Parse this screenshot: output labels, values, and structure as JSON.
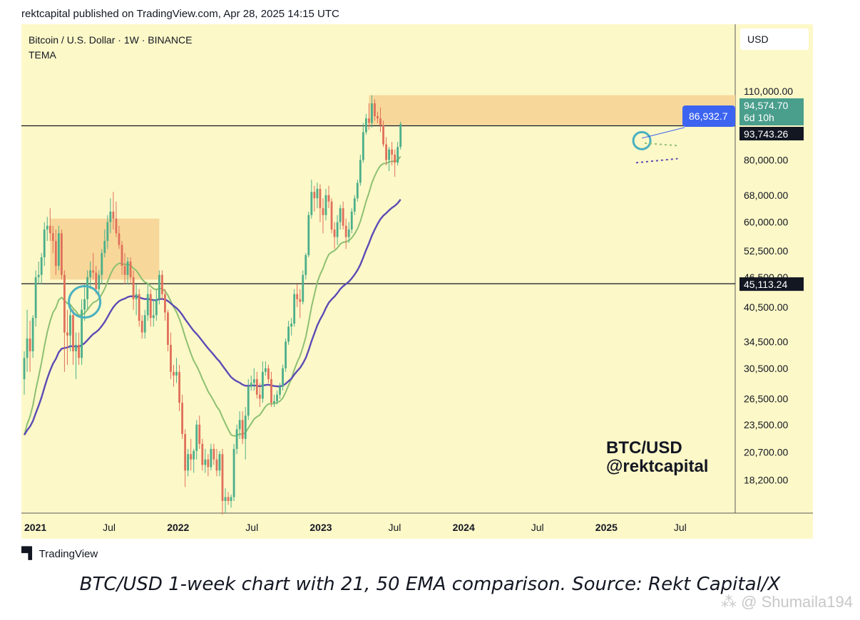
{
  "header": "rektcapital published on TradingView.com, Apr 28, 2025 14:15 UTC",
  "symbol_line": "Bitcoin / U.S. Dollar · 1W · BINANCE",
  "indicator_line": "TEMA",
  "currency_label": "USD",
  "watermark_text_1": "BTC/USD",
  "watermark_text_2": "@rektcapital",
  "footer_brand": "TradingView",
  "caption": "BTC/USD 1-week chart with 21, 50 EMA comparison. Source: Rekt Capital/X",
  "corner_watermark": "Shumaila194",
  "colors": {
    "background": "#fdf8c8",
    "up": "#4caf8a",
    "down": "#e0705a",
    "ema21": "#8cc072",
    "ema50": "#5b4bb5",
    "zone": "#f7d89a",
    "circle": "#4ab0c0",
    "price_box": "#3d64f0",
    "last_box": "#4a9e8c"
  },
  "chart_data": {
    "type": "candlestick",
    "x_axis_labels": [
      "2021",
      "Jul",
      "2022",
      "Jul",
      "2023",
      "Jul",
      "2024",
      "Jul",
      "2025",
      "Jul"
    ],
    "y_axis_labels": [
      "110,000.00",
      "80,000.00",
      "68,000.00",
      "60,000.00",
      "52,500.00",
      "46,500.00",
      "40,500.00",
      "34,500.00",
      "30,500.00",
      "26,500.00",
      "23,500.00",
      "20,700.00",
      "18,200.00"
    ],
    "y_scale": "log",
    "price_tags": [
      {
        "label": "94,574.70",
        "sub": "6d 10h",
        "value": 94574.7,
        "style": "last"
      },
      {
        "label": "86,932.7",
        "value": 86932.7,
        "style": "blue"
      },
      {
        "label": "93,743.26",
        "value": 93743.26,
        "style": "black"
      },
      {
        "label": "45,113.24",
        "value": 45113.24,
        "style": "black"
      }
    ],
    "horizontal_lines": [
      93743.26,
      45113.24
    ],
    "series": [
      {
        "name": "21",
        "type": "ema"
      },
      {
        "name": "50",
        "type": "ema"
      }
    ],
    "candles_approx_weekly": [
      [
        2021.0,
        29000,
        33000,
        27000,
        32000
      ],
      [
        2021.02,
        32000,
        40000,
        30000,
        35000
      ],
      [
        2021.04,
        35000,
        38000,
        30000,
        33000
      ],
      [
        2021.06,
        33000,
        39000,
        32000,
        38500
      ],
      [
        2021.08,
        38500,
        48000,
        37000,
        46500
      ],
      [
        2021.1,
        46500,
        50000,
        45000,
        47000
      ],
      [
        2021.12,
        47000,
        52000,
        45000,
        51000
      ],
      [
        2021.14,
        51000,
        60000,
        49000,
        58000
      ],
      [
        2021.16,
        58000,
        61500,
        55000,
        59000
      ],
      [
        2021.18,
        59000,
        64000,
        55000,
        57000
      ],
      [
        2021.2,
        57000,
        59000,
        52000,
        55000
      ],
      [
        2021.22,
        55000,
        58000,
        47000,
        49000
      ],
      [
        2021.24,
        49000,
        59000,
        48000,
        57000
      ],
      [
        2021.26,
        57000,
        58000,
        46000,
        47000
      ],
      [
        2021.28,
        47000,
        48000,
        30000,
        36000
      ],
      [
        2021.3,
        36000,
        40000,
        31000,
        35500
      ],
      [
        2021.32,
        35500,
        41000,
        33000,
        39000
      ],
      [
        2021.34,
        39000,
        40000,
        31000,
        33000
      ],
      [
        2021.36,
        33000,
        36000,
        29000,
        34000
      ],
      [
        2021.38,
        34000,
        36000,
        31000,
        32000
      ],
      [
        2021.4,
        32000,
        42000,
        31000,
        40000
      ],
      [
        2021.42,
        40000,
        45000,
        38000,
        42000
      ],
      [
        2021.44,
        42000,
        48000,
        40000,
        46500
      ],
      [
        2021.46,
        46500,
        50000,
        44000,
        48000
      ],
      [
        2021.48,
        48000,
        52000,
        46000,
        47500
      ],
      [
        2021.5,
        47500,
        49000,
        43000,
        44000
      ],
      [
        2021.52,
        44000,
        48000,
        42000,
        47000
      ],
      [
        2021.54,
        47000,
        53000,
        45000,
        52000
      ],
      [
        2021.56,
        52000,
        58000,
        51000,
        55000
      ],
      [
        2021.58,
        55000,
        62000,
        53000,
        60000
      ],
      [
        2021.6,
        60000,
        67000,
        57000,
        63000
      ],
      [
        2021.62,
        63000,
        69000,
        58000,
        61000
      ],
      [
        2021.64,
        61000,
        66000,
        56000,
        57000
      ],
      [
        2021.66,
        57000,
        59000,
        53000,
        54000
      ],
      [
        2021.68,
        54000,
        55000,
        47000,
        49000
      ],
      [
        2021.7,
        49000,
        52000,
        45000,
        47000
      ],
      [
        2021.72,
        47000,
        51000,
        45000,
        50000
      ],
      [
        2021.74,
        50000,
        51000,
        45000,
        46500
      ],
      [
        2021.76,
        46500,
        48000,
        40000,
        42000
      ],
      [
        2021.78,
        42000,
        45000,
        39000,
        43000
      ],
      [
        2021.8,
        43000,
        44000,
        37000,
        38000
      ],
      [
        2021.82,
        38000,
        39000,
        35000,
        36000
      ],
      [
        2021.84,
        36000,
        40000,
        35000,
        39000
      ],
      [
        2021.86,
        39000,
        45000,
        38000,
        43000
      ],
      [
        2021.88,
        43000,
        44000,
        37000,
        38500
      ],
      [
        2021.9,
        38500,
        42000,
        37000,
        39000
      ],
      [
        2021.92,
        39000,
        44000,
        38000,
        42000
      ],
      [
        2021.94,
        42000,
        48000,
        41000,
        47000
      ],
      [
        2021.96,
        47000,
        48000,
        42000,
        43000
      ],
      [
        2021.98,
        43000,
        44000,
        38000,
        39500
      ],
      [
        2022.0,
        39500,
        40000,
        33000,
        34000
      ],
      [
        2022.02,
        34000,
        36000,
        29000,
        30000
      ],
      [
        2022.04,
        30000,
        31000,
        28000,
        29500
      ],
      [
        2022.06,
        29500,
        32000,
        28500,
        30000
      ],
      [
        2022.08,
        30000,
        31000,
        25000,
        26000
      ],
      [
        2022.1,
        26000,
        27000,
        22000,
        22500
      ],
      [
        2022.12,
        22500,
        23000,
        17600,
        19000
      ],
      [
        2022.14,
        19000,
        21000,
        18500,
        20500
      ],
      [
        2022.16,
        20500,
        22000,
        19000,
        20000
      ],
      [
        2022.18,
        20000,
        21000,
        18800,
        20800
      ],
      [
        2022.2,
        20800,
        24000,
        20000,
        23500
      ],
      [
        2022.22,
        23500,
        24500,
        21000,
        21500
      ],
      [
        2022.24,
        21500,
        22000,
        19000,
        19500
      ],
      [
        2022.26,
        19500,
        21000,
        18800,
        20000
      ],
      [
        2022.28,
        20000,
        20500,
        18500,
        19300
      ],
      [
        2022.3,
        19300,
        21500,
        19000,
        21000
      ],
      [
        2022.32,
        21000,
        21500,
        19500,
        20000
      ],
      [
        2022.34,
        20000,
        21000,
        18500,
        19000
      ],
      [
        2022.36,
        19000,
        20800,
        18500,
        20500
      ],
      [
        2022.38,
        20500,
        21000,
        15500,
        16500
      ],
      [
        2022.4,
        16500,
        17500,
        15600,
        16800
      ],
      [
        2022.42,
        16800,
        17200,
        16200,
        16500
      ],
      [
        2022.44,
        16500,
        17000,
        16000,
        16800
      ],
      [
        2022.46,
        16800,
        21500,
        16500,
        21000
      ],
      [
        2022.48,
        21000,
        23500,
        20500,
        23000
      ],
      [
        2022.5,
        23000,
        25000,
        22000,
        24000
      ],
      [
        2022.52,
        24000,
        25000,
        21500,
        22000
      ],
      [
        2022.54,
        22000,
        25500,
        20000,
        24500
      ],
      [
        2022.56,
        24500,
        29000,
        24000,
        28000
      ],
      [
        2022.58,
        28000,
        29500,
        27500,
        28500
      ],
      [
        2022.6,
        28500,
        30500,
        27500,
        29000
      ],
      [
        2022.62,
        29000,
        30000,
        26500,
        27000
      ],
      [
        2022.64,
        27000,
        28500,
        25500,
        26500
      ],
      [
        2022.66,
        26500,
        31500,
        26000,
        30000
      ],
      [
        2022.68,
        30000,
        31500,
        29500,
        30500
      ],
      [
        2022.7,
        30500,
        31000,
        28500,
        29000
      ],
      [
        2022.72,
        29000,
        30000,
        25500,
        26000
      ],
      [
        2022.74,
        26000,
        27000,
        25500,
        26200
      ],
      [
        2022.76,
        26200,
        27500,
        25800,
        27000
      ],
      [
        2022.78,
        27000,
        28500,
        26500,
        28000
      ],
      [
        2022.8,
        28000,
        31000,
        27500,
        30500
      ],
      [
        2022.82,
        30500,
        35000,
        30000,
        34500
      ],
      [
        2022.84,
        34500,
        38000,
        34000,
        37000
      ],
      [
        2022.86,
        37000,
        38500,
        35500,
        37500
      ],
      [
        2022.88,
        37500,
        44000,
        37000,
        43000
      ],
      [
        2022.9,
        43000,
        45000,
        40500,
        42000
      ],
      [
        2022.92,
        42000,
        44000,
        38500,
        41500
      ],
      [
        2022.94,
        41500,
        48000,
        41000,
        47000
      ],
      [
        2022.96,
        47000,
        52000,
        46000,
        51500
      ],
      [
        2022.98,
        51500,
        63000,
        51000,
        62000
      ],
      [
        2023.0,
        62000,
        73000,
        61000,
        69000
      ],
      [
        2023.02,
        69000,
        71000,
        63000,
        67000
      ],
      [
        2023.04,
        67000,
        72000,
        64000,
        70000
      ],
      [
        2023.06,
        70000,
        71500,
        60000,
        64000
      ],
      [
        2023.08,
        64000,
        67000,
        57000,
        62000
      ],
      [
        2023.1,
        62000,
        70000,
        60500,
        68000
      ],
      [
        2023.12,
        68000,
        71000,
        64000,
        66000
      ],
      [
        2023.14,
        66000,
        67000,
        57000,
        58000
      ],
      [
        2023.16,
        58000,
        60000,
        53000,
        56000
      ],
      [
        2023.18,
        56000,
        62000,
        54000,
        60000
      ],
      [
        2023.2,
        60000,
        65000,
        58000,
        64000
      ],
      [
        2023.22,
        64000,
        66000,
        58000,
        59000
      ],
      [
        2023.24,
        59000,
        61000,
        53000,
        56000
      ],
      [
        2023.26,
        56000,
        60000,
        54500,
        58000
      ],
      [
        2023.28,
        58000,
        64000,
        57000,
        63000
      ],
      [
        2023.3,
        63000,
        68000,
        62000,
        67000
      ],
      [
        2023.32,
        67000,
        73000,
        66000,
        72000
      ],
      [
        2023.34,
        72000,
        82000,
        71000,
        80000
      ],
      [
        2023.36,
        80000,
        95000,
        79000,
        91000
      ],
      [
        2023.38,
        91000,
        99000,
        90000,
        97000
      ],
      [
        2023.4,
        97000,
        104000,
        92000,
        95000
      ],
      [
        2023.42,
        95000,
        108000,
        93000,
        104000
      ],
      [
        2023.44,
        104000,
        106000,
        96000,
        98000
      ],
      [
        2023.46,
        98000,
        100000,
        95000,
        97000
      ],
      [
        2023.48,
        97000,
        102000,
        91000,
        94000
      ],
      [
        2023.5,
        94000,
        96000,
        85000,
        86000
      ],
      [
        2023.52,
        86000,
        89000,
        78000,
        80000
      ],
      [
        2023.54,
        80000,
        85000,
        76000,
        84000
      ],
      [
        2023.56,
        84000,
        87000,
        78000,
        82000
      ],
      [
        2023.58,
        82000,
        84000,
        74000,
        79000
      ],
      [
        2023.6,
        79000,
        87000,
        78000,
        85000
      ],
      [
        2023.62,
        85000,
        95500,
        84000,
        94500
      ]
    ]
  }
}
